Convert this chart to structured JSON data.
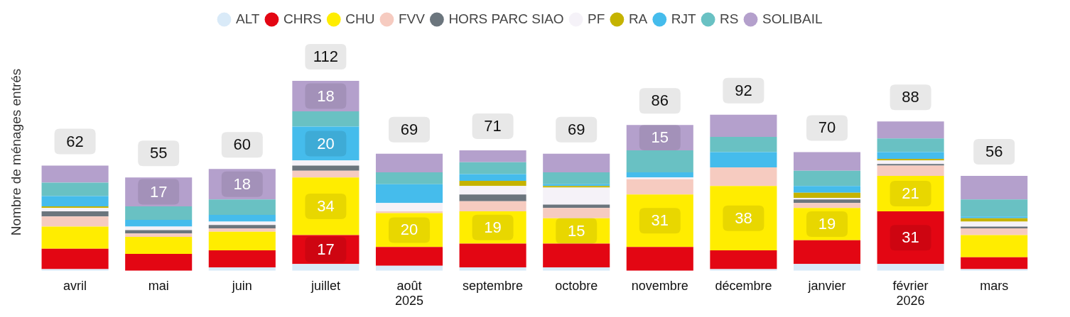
{
  "chart_data": {
    "type": "bar",
    "stacked": true,
    "ylabel": "Nombre de ménages entrés",
    "legend": "top",
    "grid": false,
    "categories": [
      "avril",
      "mai",
      "juin",
      "juillet",
      "août\n2025",
      "septembre",
      "octobre",
      "novembre",
      "décembre",
      "janvier",
      "février\n2026",
      "mars"
    ],
    "totals": [
      "62",
      "55",
      "60",
      "112",
      "69",
      "71",
      "69",
      "86",
      "92",
      "70",
      "88",
      "56"
    ],
    "series": [
      {
        "name": "ALT",
        "color": "#d9eaf8",
        "values": [
          1,
          0,
          2,
          4,
          3,
          2,
          2,
          0,
          1,
          4,
          4,
          1
        ]
      },
      {
        "name": "CHRS",
        "color": "#e30613",
        "values": [
          12,
          10,
          10,
          17,
          11,
          14,
          14,
          14,
          11,
          14,
          31,
          7
        ],
        "value_labels": [
          null,
          null,
          null,
          "17",
          null,
          null,
          null,
          null,
          null,
          null,
          "31",
          null
        ]
      },
      {
        "name": "CHU",
        "color": "#ffed00",
        "values": [
          13,
          10,
          11,
          34,
          20,
          19,
          15,
          31,
          38,
          19,
          21,
          13
        ],
        "value_labels": [
          null,
          null,
          null,
          "34",
          "20",
          "19",
          "15",
          "31",
          "38",
          "19",
          "21",
          null
        ]
      },
      {
        "name": "FVV",
        "color": "#f6cbc0",
        "values": [
          6,
          2,
          2,
          4,
          1,
          6,
          6,
          9,
          11,
          3,
          6,
          4
        ]
      },
      {
        "name": "HORS PARC SIAO",
        "color": "#6b757d",
        "values": [
          3,
          2,
          2,
          3,
          0,
          4,
          2,
          0,
          0,
          2,
          1,
          1
        ]
      },
      {
        "name": "PF",
        "color": "#f5f2f8",
        "values": [
          2,
          2,
          2,
          3,
          5,
          5,
          10,
          1,
          0,
          1,
          2,
          3
        ]
      },
      {
        "name": "RA",
        "color": "#c5b300",
        "values": [
          1,
          0,
          0,
          0,
          0,
          3,
          1,
          0,
          0,
          3,
          1,
          2
        ]
      },
      {
        "name": "RJT",
        "color": "#45bcec",
        "values": [
          6,
          4,
          4,
          20,
          11,
          4,
          1,
          3,
          9,
          4,
          4,
          1
        ],
        "value_labels": [
          null,
          null,
          null,
          "20",
          null,
          null,
          null,
          null,
          null,
          null,
          null,
          null
        ]
      },
      {
        "name": "RS",
        "color": "#69c1c3",
        "values": [
          8,
          8,
          9,
          9,
          7,
          7,
          7,
          13,
          9,
          9,
          8,
          10
        ]
      },
      {
        "name": "SOLIBAIL",
        "color": "#b4a0cc",
        "values": [
          10,
          17,
          18,
          18,
          11,
          7,
          11,
          15,
          13,
          11,
          10,
          14
        ],
        "value_labels": [
          null,
          "17",
          "18",
          "18",
          null,
          null,
          null,
          "15",
          null,
          null,
          null,
          null
        ]
      }
    ]
  }
}
